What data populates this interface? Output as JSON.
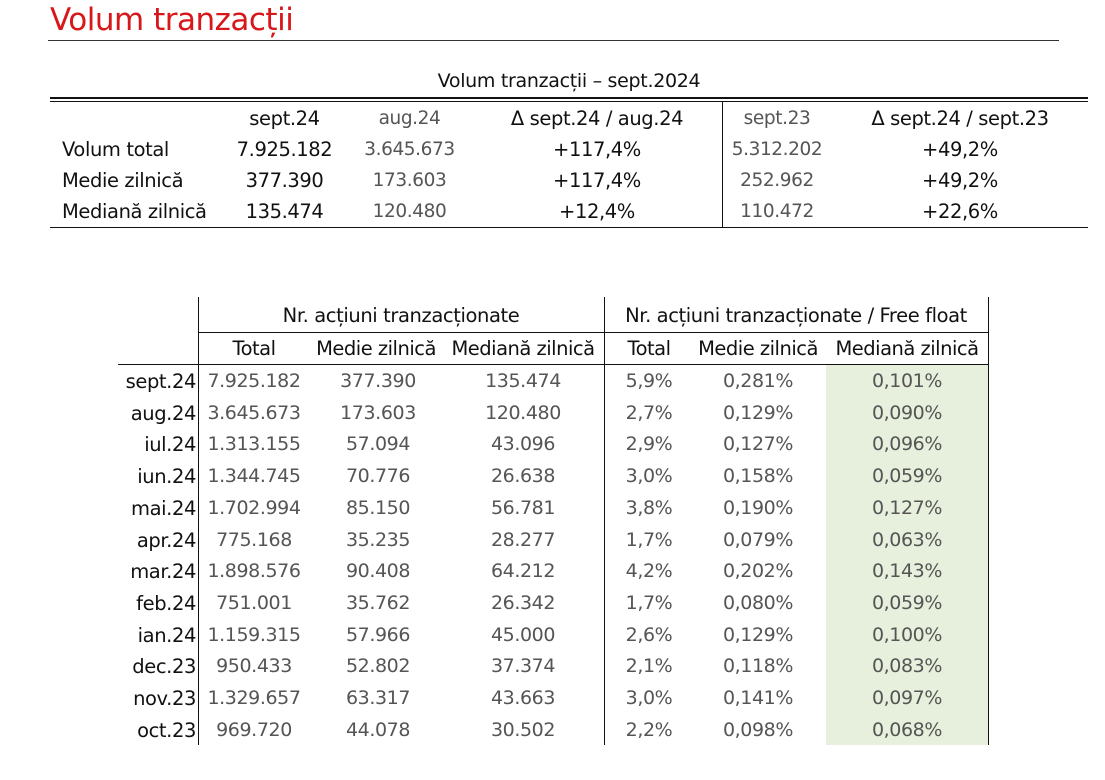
{
  "page": {
    "title": "Volum tranzacții"
  },
  "summary": {
    "caption": "Volum tranzacții – sept.2024",
    "headers": [
      "",
      "sept.24",
      "aug.24",
      "Δ sept.24 / aug.24",
      "sept.23",
      "Δ sept.24 / sept.23"
    ],
    "rows": [
      [
        "Volum total",
        "7.925.182",
        "3.645.673",
        "+117,4%",
        "5.312.202",
        "+49,2%"
      ],
      [
        "Medie zilnică",
        "377.390",
        "173.603",
        "+117,4%",
        "252.962",
        "+49,2%"
      ],
      [
        "Mediană zilnică",
        "135.474",
        "120.480",
        "+12,4%",
        "110.472",
        "+22,6%"
      ]
    ]
  },
  "monthly": {
    "group1": "Nr. acțiuni tranzacționate",
    "group2": "Nr. acțiuni tranzacționate / Free float",
    "subheaders": [
      "Total",
      "Medie zilnică",
      "Mediană zilnică",
      "Total",
      "Medie zilnică",
      "Mediană zilnică"
    ],
    "highlight_color": "#e7f0dc",
    "rows": [
      [
        "sept.24",
        "7.925.182",
        "377.390",
        "135.474",
        "5,9%",
        "0,281%",
        "0,101%"
      ],
      [
        "aug.24",
        "3.645.673",
        "173.603",
        "120.480",
        "2,7%",
        "0,129%",
        "0,090%"
      ],
      [
        "iul.24",
        "1.313.155",
        "57.094",
        "43.096",
        "2,9%",
        "0,127%",
        "0,096%"
      ],
      [
        "iun.24",
        "1.344.745",
        "70.776",
        "26.638",
        "3,0%",
        "0,158%",
        "0,059%"
      ],
      [
        "mai.24",
        "1.702.994",
        "85.150",
        "56.781",
        "3,8%",
        "0,190%",
        "0,127%"
      ],
      [
        "apr.24",
        "775.168",
        "35.235",
        "28.277",
        "1,7%",
        "0,079%",
        "0,063%"
      ],
      [
        "mar.24",
        "1.898.576",
        "90.408",
        "64.212",
        "4,2%",
        "0,202%",
        "0,143%"
      ],
      [
        "feb.24",
        "751.001",
        "35.762",
        "26.342",
        "1,7%",
        "0,080%",
        "0,059%"
      ],
      [
        "ian.24",
        "1.159.315",
        "57.966",
        "45.000",
        "2,6%",
        "0,129%",
        "0,100%"
      ],
      [
        "dec.23",
        "950.433",
        "52.802",
        "37.374",
        "2,1%",
        "0,118%",
        "0,083%"
      ],
      [
        "nov.23",
        "1.329.657",
        "63.317",
        "43.663",
        "3,0%",
        "0,141%",
        "0,097%"
      ],
      [
        "oct.23",
        "969.720",
        "44.078",
        "30.502",
        "2,2%",
        "0,098%",
        "0,068%"
      ]
    ]
  }
}
